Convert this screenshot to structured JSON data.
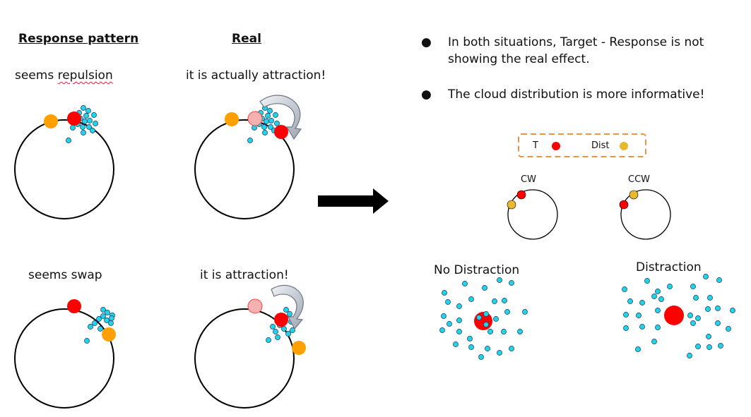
{
  "left": {
    "headers": {
      "response_pattern": "Response pattern",
      "real": "Real"
    },
    "captions": {
      "row1_response_pre": "seems ",
      "row1_response_word": "repulsion",
      "row1_real": "it is actually attraction!",
      "row2_response": "seems swap",
      "row2_real": "it is attraction!"
    }
  },
  "bullets": [
    "In both situations, Target - Response is not showing the real effect.",
    "The cloud distribution is more informative!"
  ],
  "bullet_symbol": "●",
  "legend": {
    "target_label": "T",
    "dist_label": "Dist"
  },
  "mini_diagrams": {
    "cw_label": "CW",
    "ccw_label": "CCW"
  },
  "clouds": {
    "no_distraction_label": "No Distraction",
    "distraction_label": "Distraction"
  },
  "colors": {
    "target": "#ff0000",
    "distractor_orange": "#ffa000",
    "distractor_yellow": "#e8b830",
    "cloud_dot": "#22d3e8",
    "legend_border": "#e8954a",
    "faded_target": "#f5b0b0",
    "arrow": "#000000"
  }
}
